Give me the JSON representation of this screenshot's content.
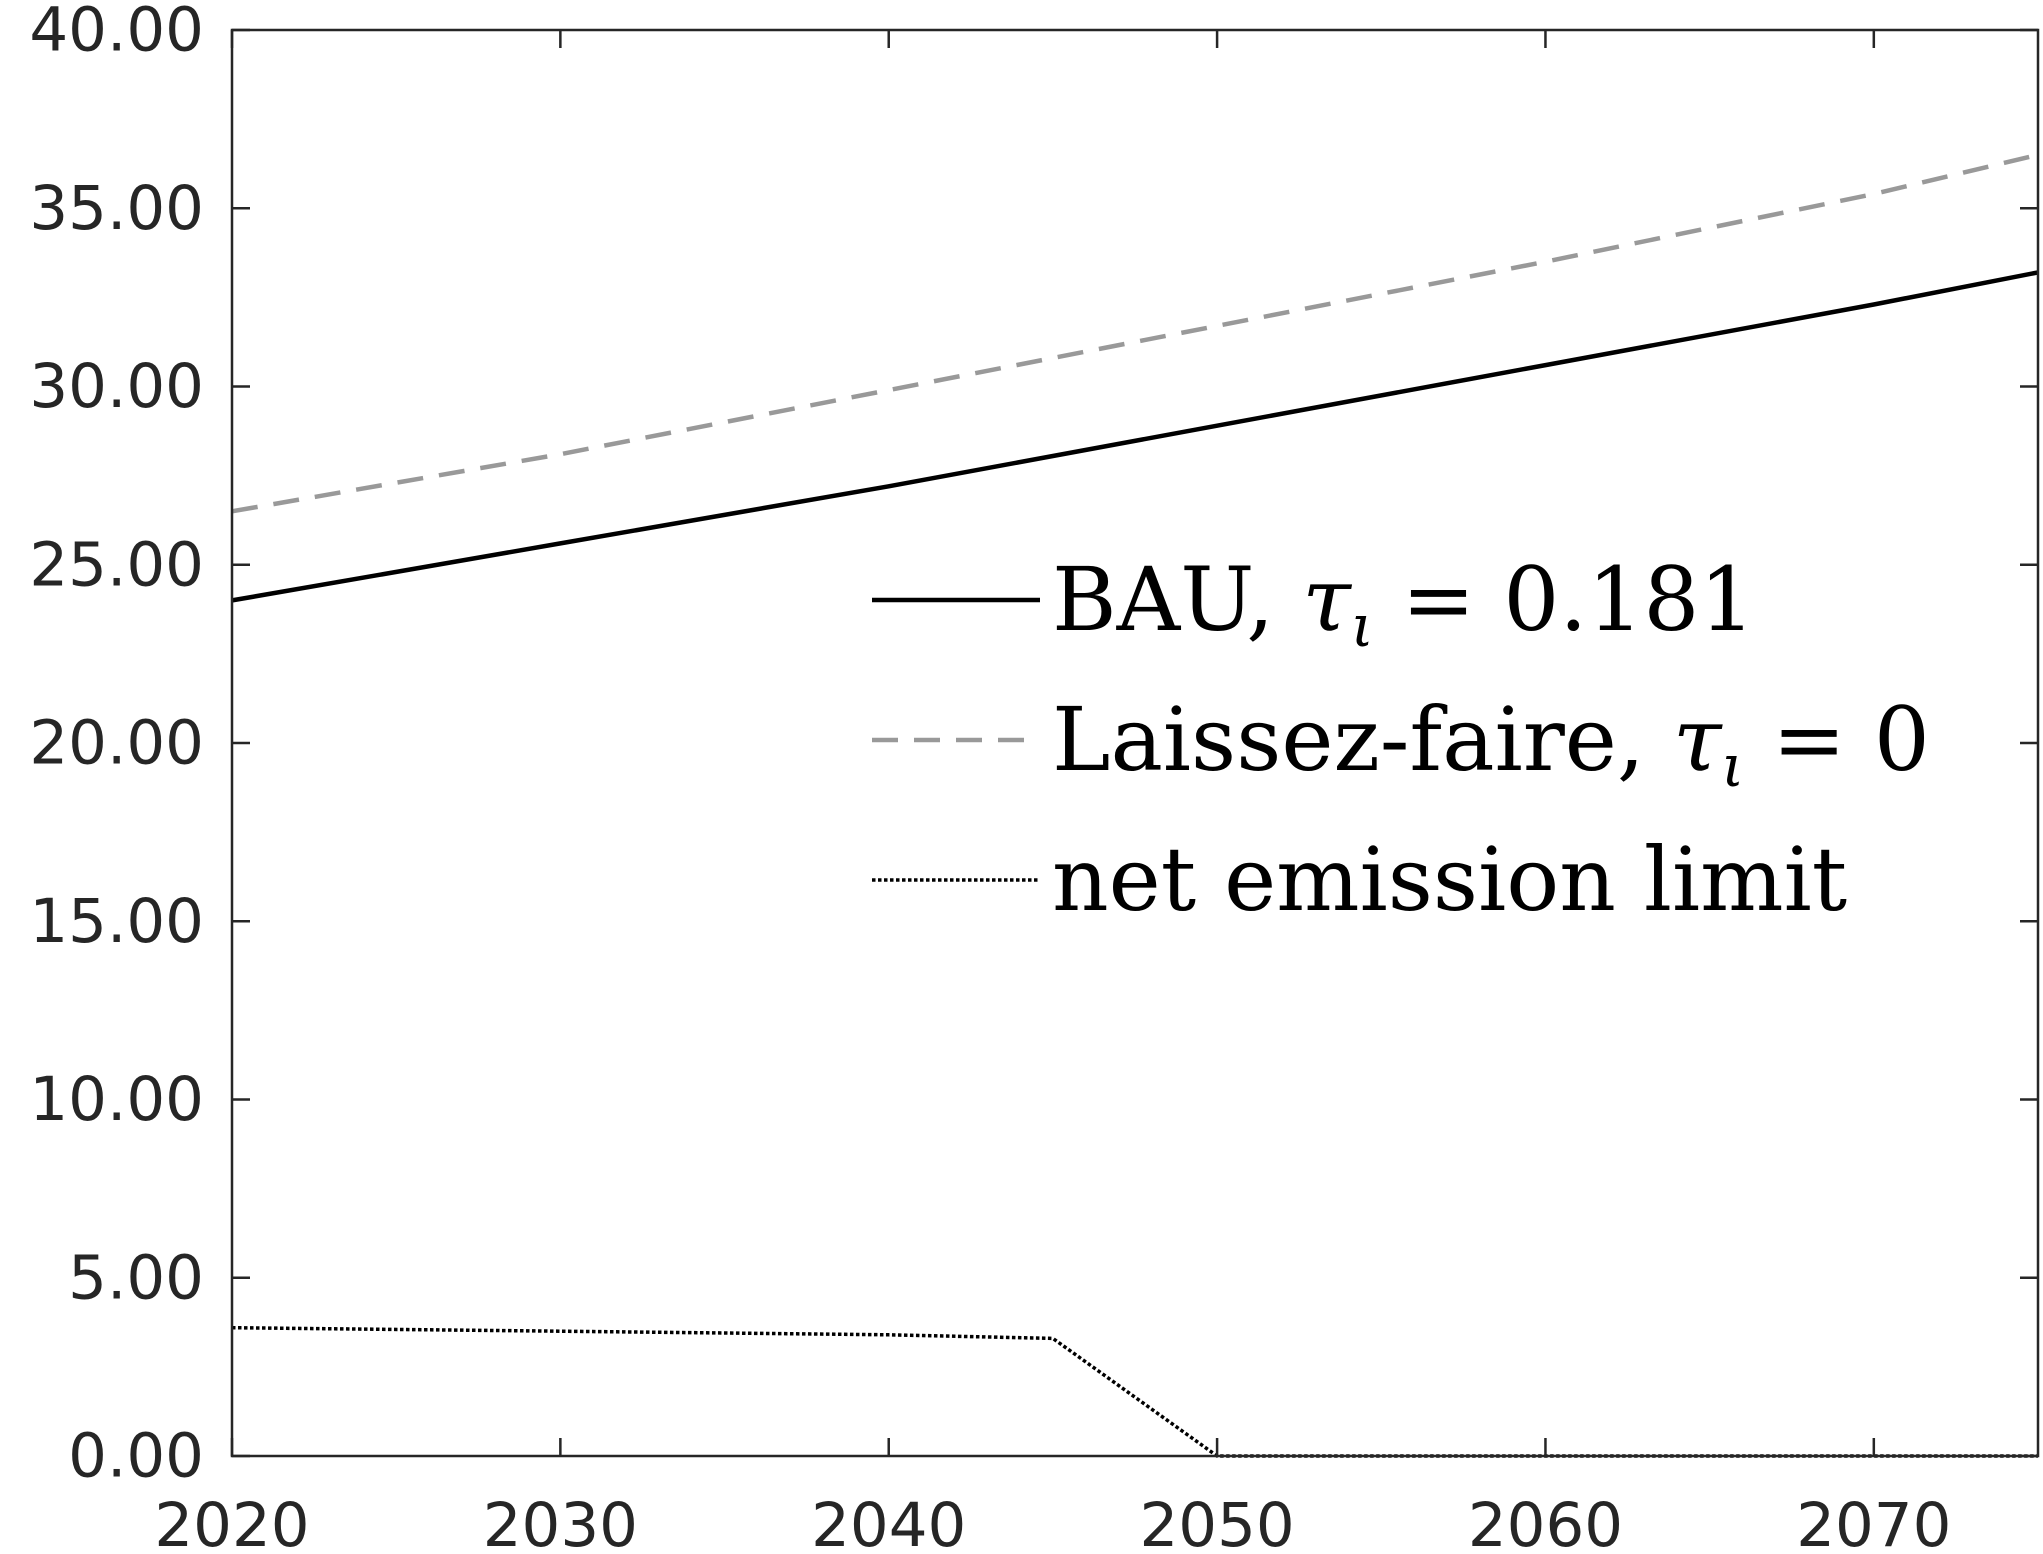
{
  "chart_data": {
    "type": "line",
    "title": "",
    "xlabel": "",
    "ylabel": "",
    "xlim": [
      2020,
      2075
    ],
    "ylim": [
      0,
      40
    ],
    "x_ticks": [
      2020,
      2030,
      2040,
      2050,
      2060,
      2070
    ],
    "x_tick_labels": [
      "2020",
      "2030",
      "2040",
      "2050",
      "2060",
      "2070"
    ],
    "y_ticks": [
      0,
      5,
      10,
      15,
      20,
      25,
      30,
      35,
      40
    ],
    "y_tick_labels": [
      "0.00",
      "5.00",
      "10.00",
      "15.00",
      "20.00",
      "25.00",
      "30.00",
      "35.00",
      "40.00"
    ],
    "grid": false,
    "legend_position": "center-right",
    "series": [
      {
        "name": "BAU, τ_ι = 0.181",
        "legend_text": "BAU, ",
        "legend_symbol": "τ",
        "legend_subscript": "ι",
        "legend_value": " = 0.181",
        "color": "#000000",
        "line_style": "solid",
        "x": [
          2020,
          2030,
          2040,
          2045,
          2050,
          2060,
          2070,
          2075
        ],
        "y": [
          24.0,
          25.6,
          27.2,
          28.05,
          28.9,
          30.6,
          32.3,
          33.2
        ]
      },
      {
        "name": "Laissez-faire, τ_ι = 0",
        "legend_text": "Laissez-faire, ",
        "legend_symbol": "τ",
        "legend_subscript": "ι",
        "legend_value": " = 0",
        "color": "#999999",
        "line_style": "dashed",
        "x": [
          2020,
          2030,
          2040,
          2045,
          2050,
          2060,
          2070,
          2075
        ],
        "y": [
          26.5,
          28.1,
          29.9,
          30.8,
          31.7,
          33.5,
          35.4,
          36.5
        ]
      },
      {
        "name": "net emission limit",
        "legend_text": "net emission limit",
        "color": "#000000",
        "line_style": "dotted",
        "x": [
          2020,
          2030,
          2040,
          2045,
          2050,
          2060,
          2070,
          2075
        ],
        "y": [
          3.6,
          3.5,
          3.4,
          3.3,
          0.0,
          0.0,
          0.0,
          0.0
        ]
      }
    ]
  }
}
